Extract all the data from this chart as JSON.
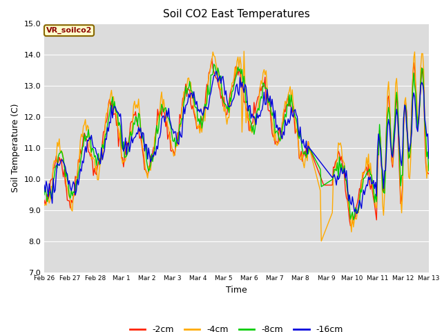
{
  "title": "Soil CO2 East Temperatures",
  "xlabel": "Time",
  "ylabel": "Soil Temperature (C)",
  "ylim": [
    7.0,
    15.0
  ],
  "yticks": [
    7.0,
    8.0,
    9.0,
    10.0,
    11.0,
    12.0,
    13.0,
    14.0,
    15.0
  ],
  "legend_label": "VR_soilco2",
  "bg_color": "#dcdcdc",
  "fig_color": "#ffffff",
  "line_colors": {
    "-2cm": "#ff2200",
    "-4cm": "#ffaa00",
    "-8cm": "#00cc00",
    "-16cm": "#0000dd"
  },
  "xtick_labels": [
    "Feb 26",
    "Feb 27",
    "Feb 28",
    "Mar 1",
    "Mar 2",
    "Mar 3",
    "Mar 4",
    "Mar 5",
    "Mar 6",
    "Mar 7",
    "Mar 8",
    "Mar 9",
    "Mar 10",
    "Mar 11",
    "Mar 12",
    "Mar 13"
  ],
  "n_per_day": 24
}
